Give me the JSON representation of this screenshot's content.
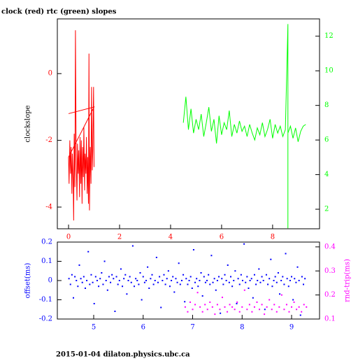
{
  "chart_data": [
    {
      "type": "line",
      "title": "clock (red) rtc (green) slopes",
      "ylabel": "clockslope",
      "xlim": [
        -0.44,
        9.84
      ],
      "xticks": [
        0,
        2,
        4,
        6,
        8
      ],
      "ylim": [
        -4.65,
        1.64
      ],
      "yticks": [
        -4,
        -2,
        0
      ],
      "y2lim": [
        0.87,
        13.0
      ],
      "y2ticks": [
        2,
        4,
        6,
        8,
        10,
        12
      ],
      "series": [
        {
          "color": "#ff0000",
          "x": [
            0,
            1,
            0,
            0.02,
            0.05,
            0.08,
            0.1,
            0.13,
            0.15,
            0.18,
            0.2,
            0.22,
            0.25,
            0.27,
            0.3,
            0.33,
            0.35,
            0.38,
            0.4,
            0.43,
            0.45,
            0.48,
            0.5,
            0.53,
            0.55,
            0.58,
            0.6,
            0.63,
            0.65,
            0.68,
            0.7,
            0.73,
            0.75,
            0.78,
            0.8,
            0.82,
            0.85,
            0.88,
            0.9,
            0.93,
            0.95,
            0.98,
            1
          ],
          "values": [
            -1.2,
            -1.0,
            -2.5,
            -3.3,
            -2.0,
            -3.0,
            -2.2,
            -3.6,
            -2.4,
            -3.2,
            -4.4,
            -1.8,
            -3.4,
            1.3,
            -2.6,
            -3.8,
            -2.1,
            -3.0,
            -2.3,
            -3.7,
            -1.9,
            -3.3,
            -2.0,
            -3.9,
            -2.2,
            -3.1,
            -1.6,
            -3.5,
            -2.4,
            -3.0,
            -1.9,
            -3.6,
            -2.5,
            -3.9,
            0.6,
            -4.1,
            -2.2,
            -3.3,
            -0.4,
            -2.9,
            -2.3,
            -0.4,
            -2.8
          ]
        },
        {
          "color": "#00ff00",
          "axis": "y2",
          "x": [
            4.5,
            4.6,
            4.7,
            4.8,
            4.9,
            5.0,
            5.1,
            5.2,
            5.3,
            5.4,
            5.5,
            5.6,
            5.7,
            5.8,
            5.9,
            6.0,
            6.1,
            6.2,
            6.3,
            6.4,
            6.5,
            6.6,
            6.7,
            6.8,
            6.9,
            7.0,
            7.1,
            7.2,
            7.3,
            7.4,
            7.5,
            7.6,
            7.7,
            7.8,
            7.9,
            8.0,
            8.1,
            8.2,
            8.3,
            8.4,
            8.5,
            8.6,
            8.6,
            8.6,
            8.7,
            8.8,
            8.9,
            9.0,
            9.1,
            9.2,
            9.3
          ],
          "values": [
            7.0,
            8.5,
            6.6,
            7.8,
            6.4,
            7.2,
            6.6,
            7.5,
            6.2,
            7.0,
            7.9,
            6.5,
            7.2,
            5.8,
            7.4,
            6.3,
            7.0,
            6.6,
            7.7,
            6.2,
            6.9,
            6.4,
            7.1,
            6.5,
            6.8,
            6.2,
            6.9,
            6.4,
            6.0,
            6.7,
            6.3,
            7.0,
            6.2,
            6.6,
            7.2,
            6.1,
            6.9,
            6.4,
            6.8,
            6.2,
            6.6,
            12.7,
            0.9,
            6.4,
            6.8,
            6.1,
            6.7,
            5.9,
            6.5,
            6.8,
            6.9
          ]
        }
      ]
    },
    {
      "type": "scatter",
      "ylabel": "offset(ms)",
      "y2label": "rnd-trip(ms)",
      "xlim": [
        4.265,
        9.565
      ],
      "xticks": [
        5,
        6,
        7,
        8,
        9
      ],
      "ylim": [
        -0.2,
        0.2
      ],
      "yticks": [
        -0.2,
        -0.1,
        0,
        0.1,
        0.2
      ],
      "y2lim": [
        0.1,
        0.42
      ],
      "y2ticks": [
        0.1,
        0.2,
        0.3,
        0.4
      ],
      "series": [
        {
          "color": "#0000ff",
          "x": [
            4.5,
            4.53,
            4.56,
            4.59,
            4.62,
            4.65,
            4.68,
            4.71,
            4.74,
            4.77,
            4.8,
            4.83,
            4.86,
            4.89,
            4.92,
            4.95,
            4.98,
            5.01,
            5.04,
            5.07,
            5.1,
            5.13,
            5.16,
            5.19,
            5.22,
            5.25,
            5.28,
            5.31,
            5.34,
            5.37,
            5.4,
            5.43,
            5.46,
            5.49,
            5.52,
            5.55,
            5.58,
            5.61,
            5.64,
            5.67,
            5.7,
            5.73,
            5.76,
            5.79,
            5.82,
            5.85,
            5.88,
            5.91,
            5.94,
            5.97,
            6.0,
            6.03,
            6.06,
            6.09,
            6.12,
            6.15,
            6.18,
            6.21,
            6.24,
            6.27,
            6.3,
            6.33,
            6.36,
            6.39,
            6.42,
            6.45,
            6.48,
            6.51,
            6.54,
            6.57,
            6.6,
            6.63,
            6.66,
            6.69,
            6.72,
            6.75,
            6.78,
            6.81,
            6.84,
            6.87,
            6.9,
            6.93,
            6.96,
            6.99,
            7.02,
            7.05,
            7.08,
            7.11,
            7.14,
            7.17,
            7.2,
            7.23,
            7.26,
            7.29,
            7.32,
            7.35,
            7.38,
            7.41,
            7.44,
            7.47,
            7.5,
            7.53,
            7.56,
            7.59,
            7.62,
            7.65,
            7.68,
            7.71,
            7.74,
            7.77,
            7.8,
            7.83,
            7.86,
            7.89,
            7.92,
            7.95,
            7.98,
            8.01,
            8.04,
            8.07,
            8.1,
            8.13,
            8.16,
            8.19,
            8.22,
            8.25,
            8.28,
            8.31,
            8.34,
            8.37,
            8.4,
            8.43,
            8.46,
            8.49,
            8.52,
            8.55,
            8.58,
            8.61,
            8.64,
            8.67,
            8.7,
            8.73,
            8.76,
            8.79,
            8.82,
            8.85,
            8.88,
            8.91,
            8.94,
            8.97,
            9.0,
            9.03,
            9.06,
            9.09,
            9.12,
            9.15,
            9.18,
            9.21,
            9.24,
            9.27
          ],
          "values": [
            0.01,
            -0.02,
            0.03,
            -0.09,
            0.02,
            0.0,
            -0.03,
            0.08,
            0.01,
            -0.01,
            0.02,
            -0.04,
            0.0,
            0.15,
            -0.02,
            0.03,
            -0.01,
            -0.12,
            0.02,
            0.0,
            -0.03,
            0.01,
            0.04,
            -0.02,
            0.1,
            0.0,
            -0.05,
            0.02,
            -0.01,
            0.03,
            0.01,
            -0.16,
            0.02,
            -0.02,
            0.0,
            0.06,
            -0.03,
            0.01,
            0.03,
            -0.07,
            0.0,
            0.02,
            -0.01,
            0.18,
            -0.03,
            0.01,
            0.0,
            -0.02,
            0.04,
            -0.1,
            0.02,
            -0.01,
            0.0,
            0.07,
            -0.04,
            0.01,
            0.03,
            -0.02,
            0.0,
            0.12,
            -0.01,
            0.02,
            -0.14,
            0.0,
            0.03,
            -0.02,
            0.01,
            0.05,
            -0.03,
            0.0,
            0.02,
            -0.06,
            0.01,
            -0.01,
            0.09,
            -0.02,
            0.0,
            0.03,
            -0.11,
            0.01,
            -0.02,
            0.0,
            0.02,
            -0.04,
            0.16,
            -0.01,
            0.01,
            -0.03,
            0.0,
            0.04,
            -0.08,
            0.02,
            -0.01,
            0.0,
            0.03,
            -0.02,
            0.13,
            -0.01,
            0.01,
            -0.05,
            0.0,
            0.02,
            -0.17,
            0.01,
            -0.02,
            0.03,
            0.0,
            0.08,
            -0.01,
            0.02,
            -0.03,
            0.0,
            0.05,
            -0.12,
            0.01,
            -0.02,
            0.03,
            0.0,
            0.19,
            -0.01,
            0.02,
            -0.04,
            0.0,
            0.01,
            -0.09,
            0.03,
            -0.02,
            0.0,
            0.06,
            -0.01,
            0.02,
            0.0,
            -0.15,
            0.03,
            -0.02,
            0.01,
            0.11,
            -0.03,
            0.0,
            0.02,
            -0.01,
            0.04,
            -0.07,
            0.0,
            0.02,
            -0.02,
            0.14,
            0.01,
            -0.03,
            0.0,
            0.02,
            -0.1,
            0.01,
            -0.01,
            0.07,
            0.0,
            -0.18,
            0.02,
            -0.02,
            0.01
          ]
        },
        {
          "color": "#ff00ff",
          "axis": "y2",
          "x": [
            6.85,
            6.9,
            6.95,
            7.0,
            7.05,
            7.1,
            7.15,
            7.2,
            7.25,
            7.3,
            7.35,
            7.4,
            7.45,
            7.5,
            7.55,
            7.6,
            7.65,
            7.7,
            7.75,
            7.8,
            7.85,
            7.9,
            7.95,
            8.0,
            8.05,
            8.1,
            8.15,
            8.2,
            8.25,
            8.3,
            8.35,
            8.4,
            8.45,
            8.5,
            8.55,
            8.6,
            8.65,
            8.7,
            8.75,
            8.8,
            8.85,
            8.9,
            8.95,
            9.0,
            9.05,
            9.1,
            9.15,
            9.2,
            9.25,
            9.3
          ],
          "values": [
            0.15,
            0.13,
            0.17,
            0.14,
            0.16,
            0.21,
            0.15,
            0.13,
            0.16,
            0.14,
            0.17,
            0.15,
            0.12,
            0.16,
            0.14,
            0.19,
            0.15,
            0.13,
            0.16,
            0.15,
            0.14,
            0.17,
            0.13,
            0.15,
            0.22,
            0.14,
            0.16,
            0.13,
            0.15,
            0.17,
            0.14,
            0.16,
            0.12,
            0.15,
            0.18,
            0.14,
            0.16,
            0.13,
            0.15,
            0.2,
            0.14,
            0.16,
            0.13,
            0.15,
            0.17,
            0.14,
            0.15,
            0.13,
            0.16,
            0.15
          ]
        }
      ]
    }
  ],
  "footer": "2015-01-04 dilaton.physics.ubc.ca"
}
